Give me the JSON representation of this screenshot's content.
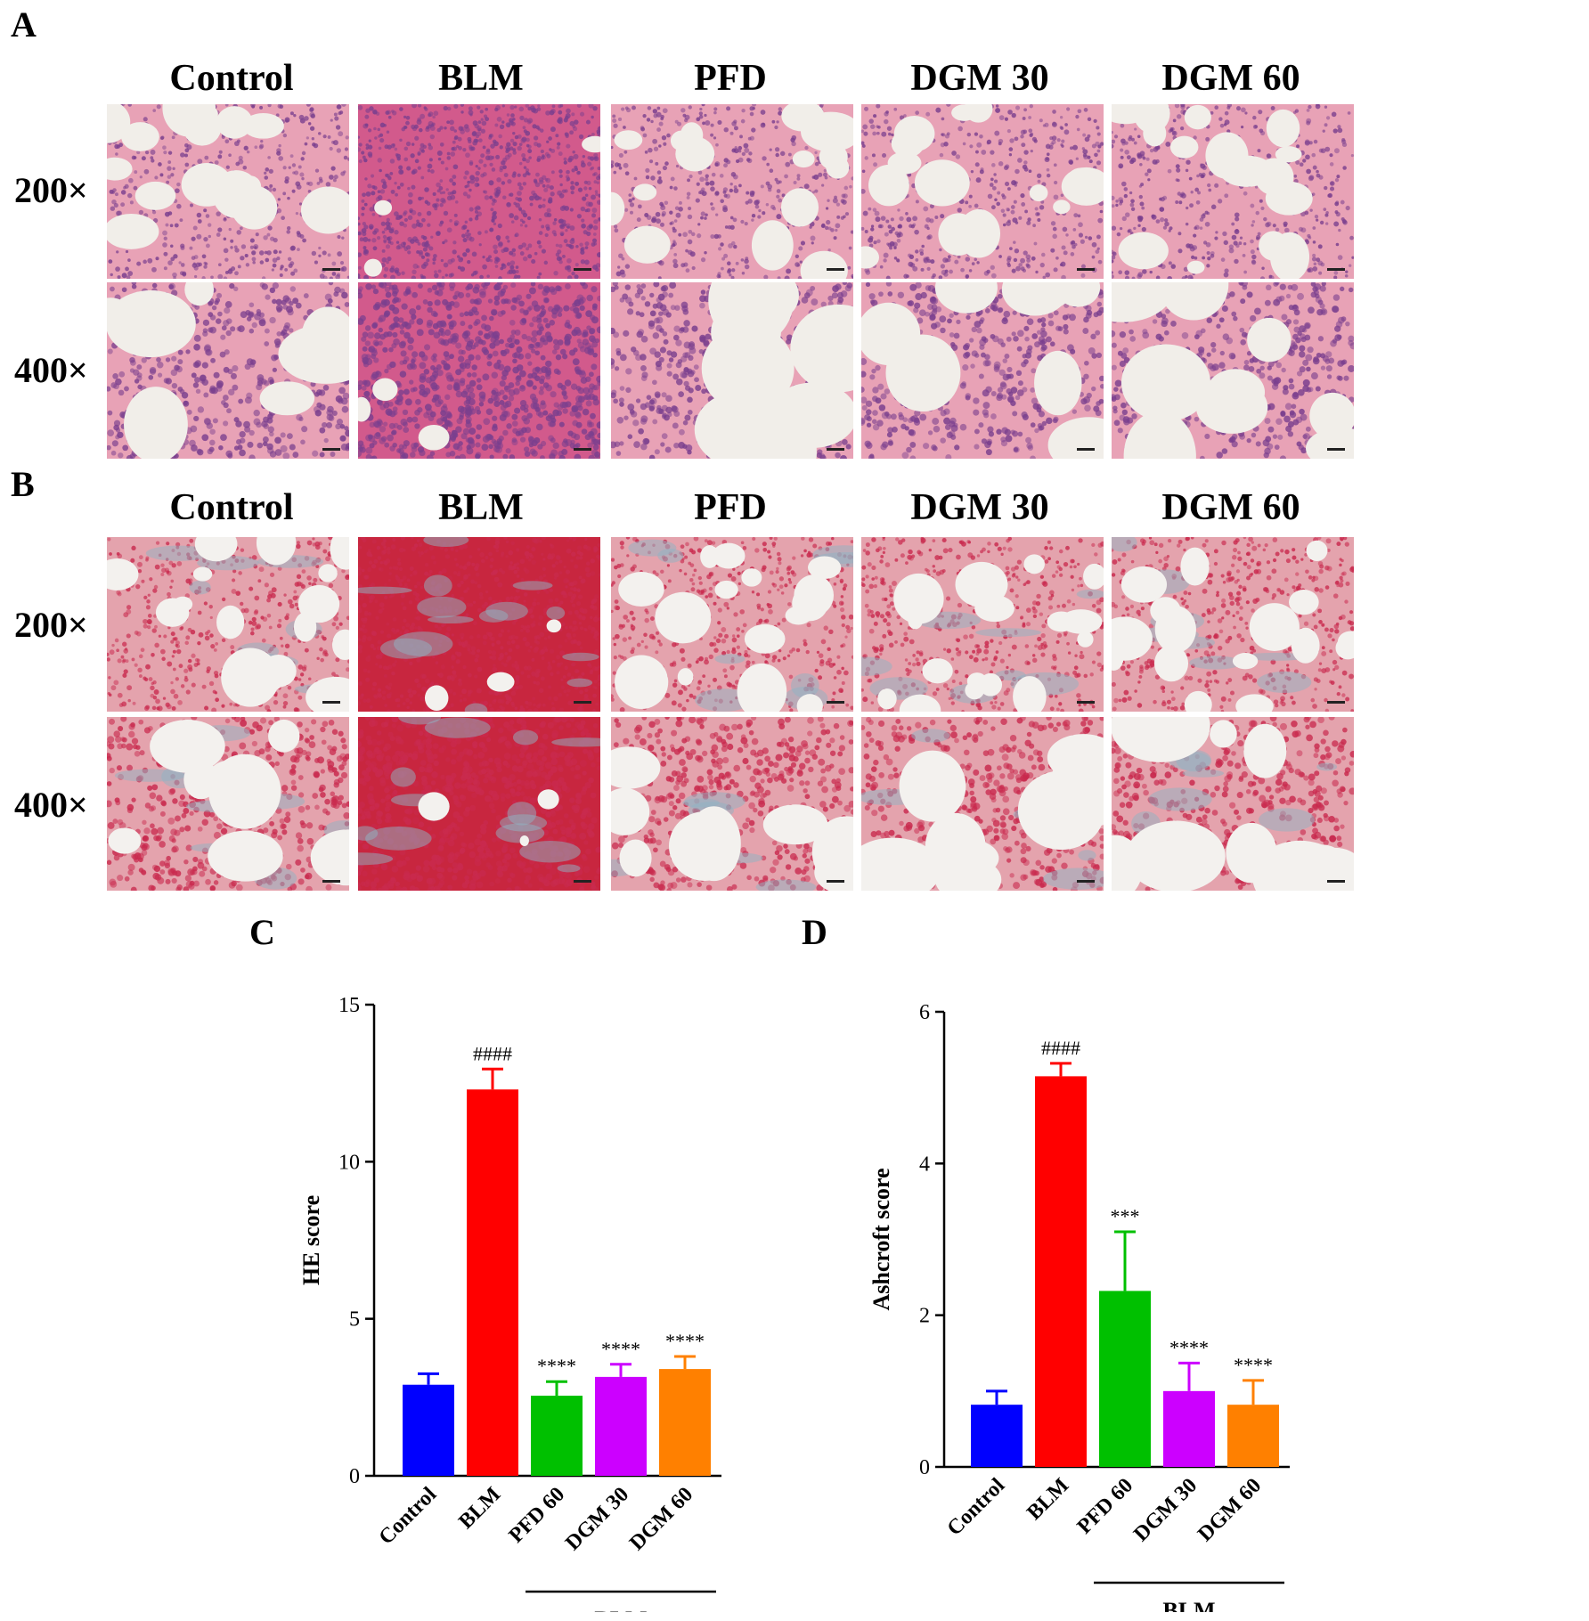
{
  "panels": {
    "A": {
      "letter": "A",
      "columns": [
        "Control",
        "BLM",
        "PFD",
        "DGM 30",
        "DGM 60"
      ],
      "rows": [
        "200×",
        "400×"
      ],
      "stain_colors": {
        "background": "#f1eee9",
        "tissue": "#e8a2b6",
        "nuclei": "#7a3f8e",
        "dense": "#d25a8c"
      }
    },
    "B": {
      "letter": "B",
      "columns": [
        "Control",
        "BLM",
        "PFD",
        "DGM 30",
        "DGM 60"
      ],
      "rows": [
        "200×",
        "400×"
      ],
      "stain_colors": {
        "background": "#f3f1ee",
        "tissue": "#e4a3ad",
        "nuclei": "#c92a4e",
        "dense": "#c8263f",
        "collagen": "#8fb3c4"
      }
    }
  },
  "chart_data": [
    {
      "panel": "C",
      "type": "bar",
      "categories": [
        "Control",
        "BLM",
        "PFD 60",
        "DGM 30",
        "DGM 60"
      ],
      "values": [
        2.9,
        12.3,
        2.55,
        3.15,
        3.4
      ],
      "errors": [
        0.35,
        0.65,
        0.45,
        0.4,
        0.4
      ],
      "annotations": [
        "",
        "####",
        "****",
        "****",
        "****"
      ],
      "colors": [
        "#0000ff",
        "#ff0000",
        "#00c000",
        "#cc00ff",
        "#ff8000"
      ],
      "ylabel": "HE score",
      "yticks": [
        0,
        5,
        10,
        15
      ],
      "ylim": [
        0,
        15
      ],
      "group_label": "BLM",
      "group_categories": [
        "PFD 60",
        "DGM 30",
        "DGM 60"
      ]
    },
    {
      "panel": "D",
      "type": "bar",
      "categories": [
        "Control",
        "BLM",
        "PFD 60",
        "DGM 30",
        "DGM 60"
      ],
      "values": [
        0.82,
        5.15,
        2.32,
        1.0,
        0.82
      ],
      "errors": [
        0.18,
        0.17,
        0.78,
        0.37,
        0.32
      ],
      "annotations": [
        "",
        "####",
        "***",
        "****",
        "****"
      ],
      "colors": [
        "#0000ff",
        "#ff0000",
        "#00c000",
        "#cc00ff",
        "#ff8000"
      ],
      "ylabel": "Ashcroft score",
      "yticks": [
        0,
        2,
        4,
        6
      ],
      "ylim": [
        0,
        6
      ],
      "group_label": "BLM",
      "group_categories": [
        "PFD 60",
        "DGM 30",
        "DGM 60"
      ]
    }
  ],
  "chart_letters": {
    "C": "C",
    "D": "D"
  }
}
